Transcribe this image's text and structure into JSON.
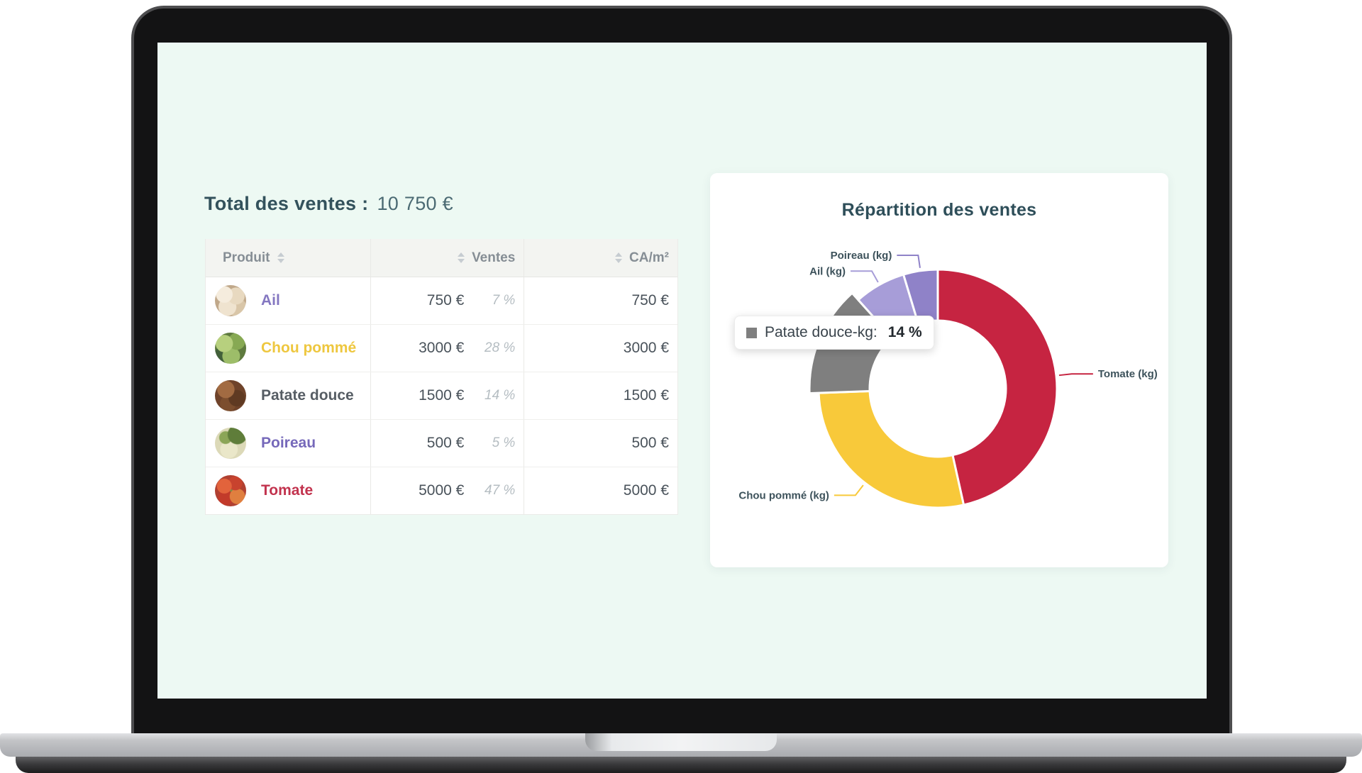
{
  "screen": {
    "summary": {
      "label": "Total des ventes :",
      "value": "10 750 €"
    },
    "table": {
      "columns": [
        {
          "label": "Produit"
        },
        {
          "label": "Ventes"
        },
        {
          "label": "CA/m²"
        }
      ],
      "rows": [
        {
          "name": "Ail",
          "ventes": "750 €",
          "percent": "7 %",
          "ca": "750 €",
          "name_color": "#8477c1"
        },
        {
          "name": "Chou pommé",
          "ventes": "3000 €",
          "percent": "28 %",
          "ca": "3000 €",
          "name_color": "#eec73f"
        },
        {
          "name": "Patate douce",
          "ventes": "1500 €",
          "percent": "14 %",
          "ca": "1500 €",
          "name_color": "#565d64"
        },
        {
          "name": "Poireau",
          "ventes": "500 €",
          "percent": "5 %",
          "ca": "500 €",
          "name_color": "#7669ba"
        },
        {
          "name": "Tomate",
          "ventes": "5000 €",
          "percent": "47 %",
          "ca": "5000 €",
          "name_color": "#c2334e"
        }
      ]
    },
    "chart_card": {
      "title": "Répartition des ventes",
      "tooltip": {
        "label": "Patate douce-kg:",
        "value": "14 %",
        "swatch_color": "#7f7f7f"
      }
    }
  },
  "chart_data": {
    "type": "pie",
    "donut": true,
    "title": "Répartition des ventes",
    "direction": "clockwise",
    "start_angle_deg": 0,
    "legend_position": "outside-labels",
    "series": [
      {
        "name": "Tomate (kg)",
        "value": 5000,
        "percent": 47,
        "color": "#c62441",
        "labeled": true,
        "hovered": false
      },
      {
        "name": "Chou pommé (kg)",
        "value": 3000,
        "percent": 28,
        "color": "#f8c93a",
        "labeled": true,
        "hovered": false
      },
      {
        "name": "Patate douce (kg)",
        "value": 1500,
        "percent": 14,
        "color": "#7f7f7f",
        "labeled": false,
        "hovered": true
      },
      {
        "name": "Ail (kg)",
        "value": 750,
        "percent": 7,
        "color": "#a79dd8",
        "labeled": true,
        "hovered": false
      },
      {
        "name": "Poireau (kg)",
        "value": 500,
        "percent": 5,
        "color": "#8f82c8",
        "labeled": true,
        "hovered": false
      }
    ],
    "tooltip": {
      "label": "Patate douce-kg:",
      "value": "14 %"
    }
  }
}
